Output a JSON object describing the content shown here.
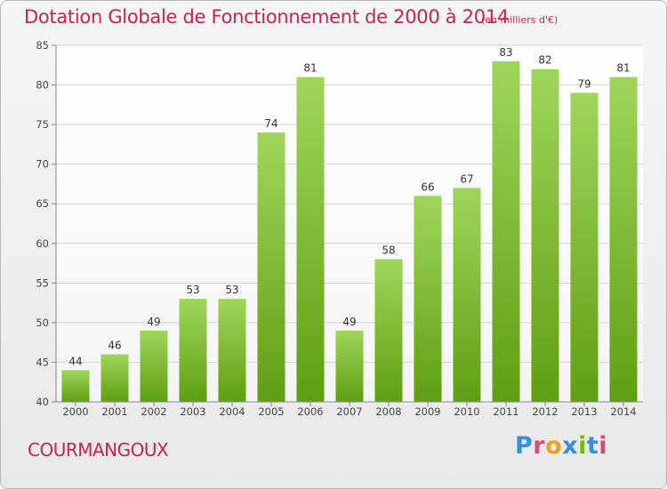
{
  "header": {
    "title": "Dotation Globale de Fonctionnement de 2000 à 2014",
    "unit_note": "(en milliers d'€)"
  },
  "footer": {
    "commune": "COURMANGOUX",
    "logo_text": "Proxiti",
    "logo_colors": [
      "#3b8ed8",
      "#e2457b",
      "#f0a020",
      "#3b8ed8",
      "#7ab800",
      "#3b8ed8",
      "#e2457b"
    ]
  },
  "colors": {
    "title": "#c8234a",
    "bar_top": "#9fd65a",
    "bar_bottom": "#5f9e12",
    "grid": "#d4d4d4",
    "axis_text": "#444444"
  },
  "chart_data": {
    "type": "bar",
    "title": "Dotation Globale de Fonctionnement de 2000 à 2014",
    "subtitle": "(en milliers d'€)",
    "xlabel": "",
    "ylabel": "",
    "categories": [
      "2000",
      "2001",
      "2002",
      "2003",
      "2004",
      "2005",
      "2006",
      "2007",
      "2008",
      "2009",
      "2010",
      "2011",
      "2012",
      "2013",
      "2014"
    ],
    "values": [
      44,
      46,
      49,
      53,
      53,
      74,
      81,
      49,
      58,
      66,
      67,
      83,
      82,
      79,
      81
    ],
    "ylim": [
      40,
      85
    ],
    "yticks": [
      40,
      45,
      50,
      55,
      60,
      65,
      70,
      75,
      80,
      85
    ],
    "grid": true,
    "data_labels": true
  }
}
